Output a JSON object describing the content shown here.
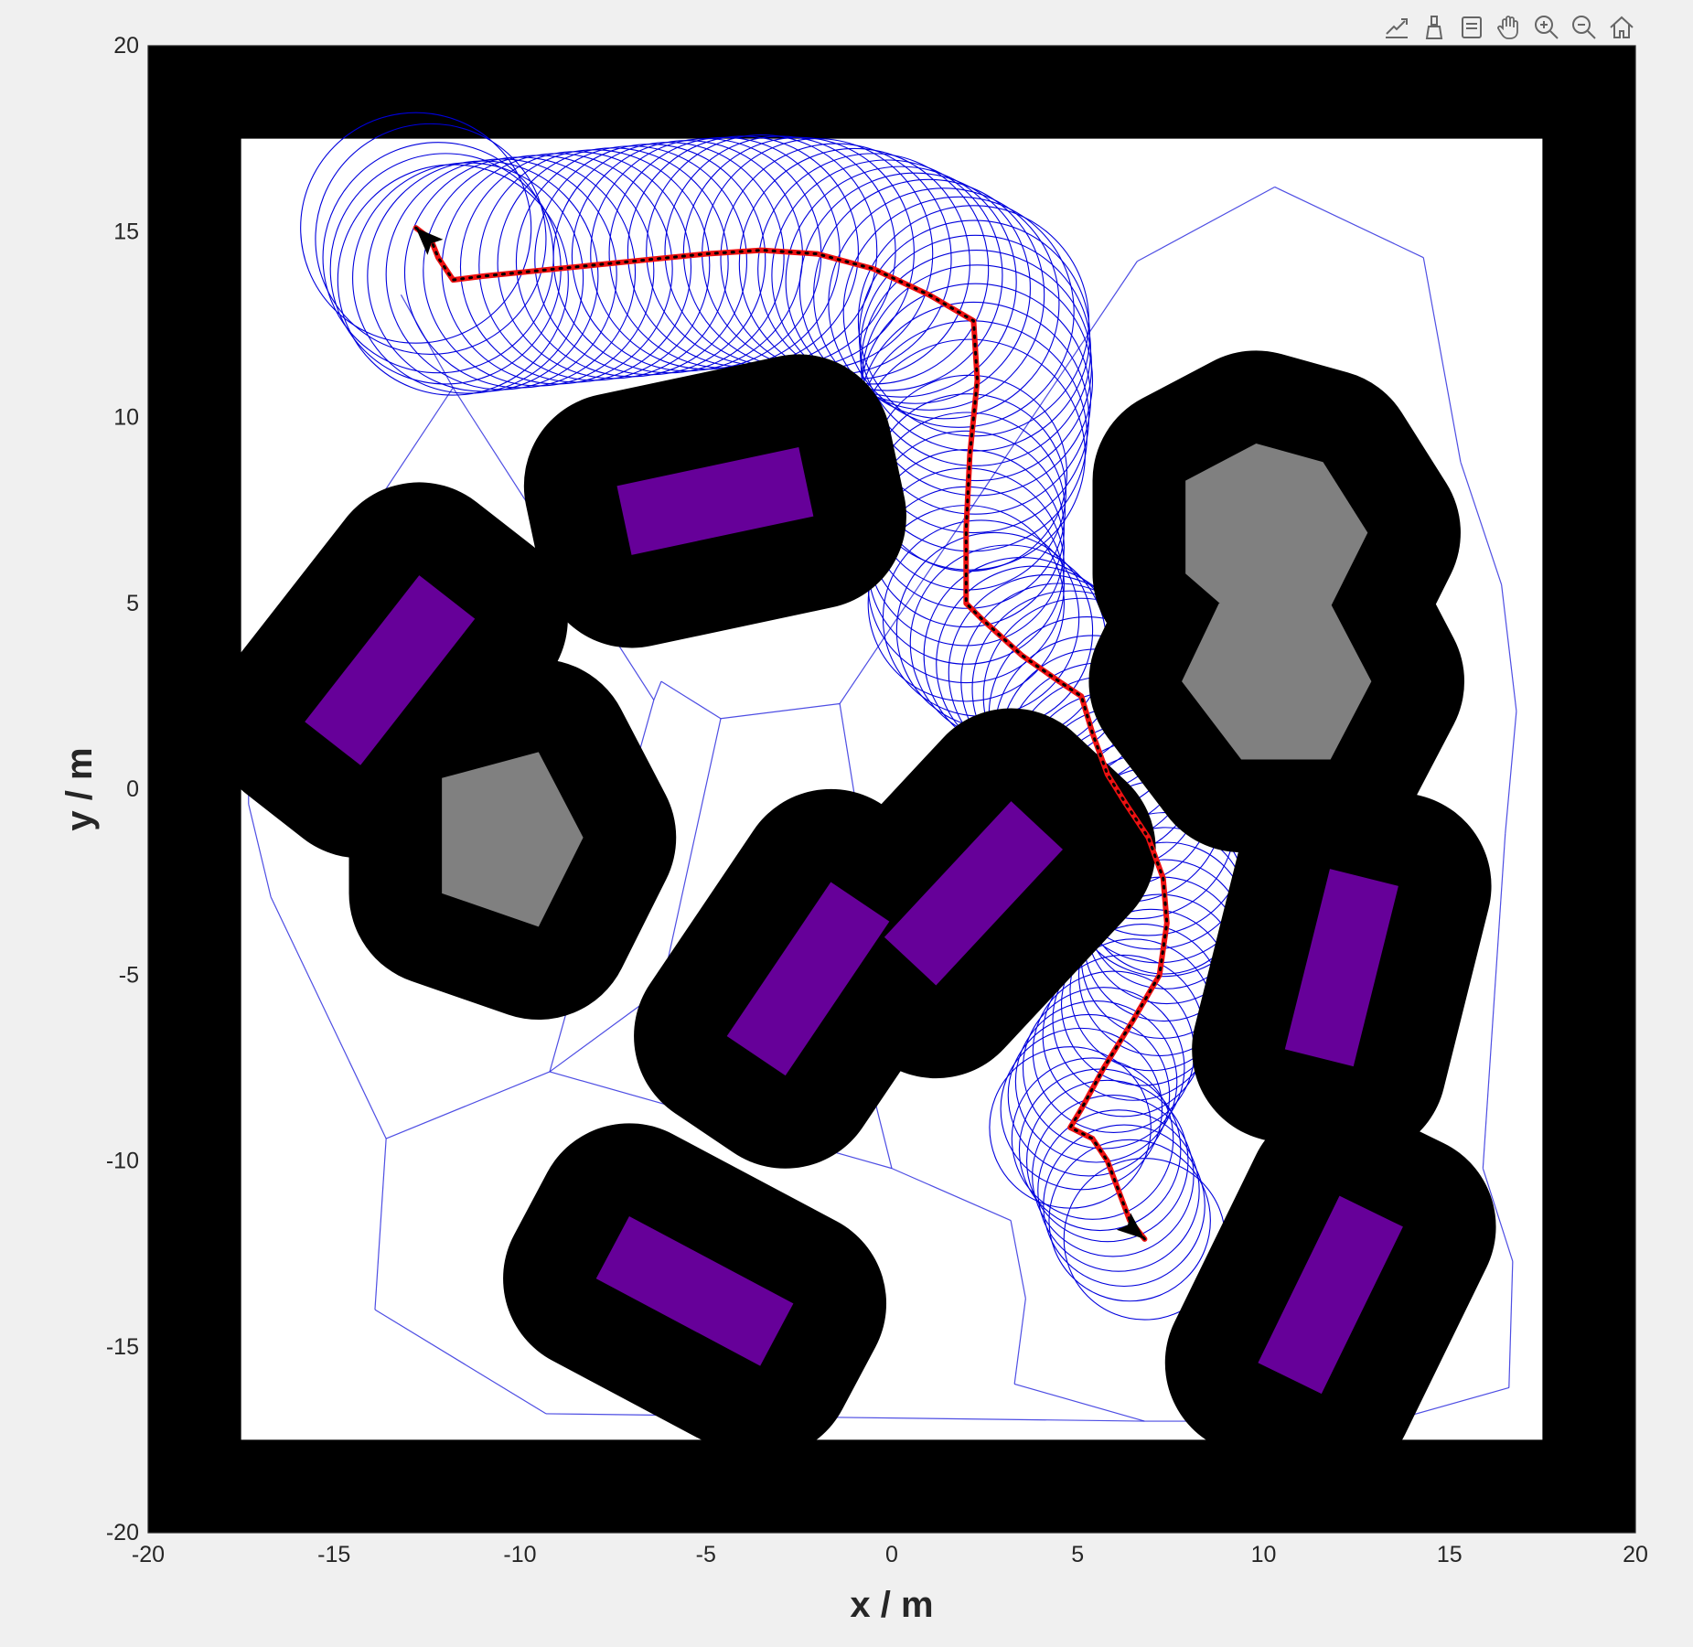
{
  "toolbar": {
    "buttons": [
      "export-icon",
      "brush-icon",
      "datatip-icon",
      "pan-icon",
      "zoom-in-icon",
      "zoom-out-icon",
      "home-icon"
    ]
  },
  "chart_data": {
    "type": "scatter",
    "title": "",
    "xlabel": "x / m",
    "ylabel": "y / m",
    "xlim": [
      -20,
      20
    ],
    "ylim": [
      -20,
      20
    ],
    "xticks": [
      -20,
      -15,
      -10,
      -5,
      0,
      5,
      10,
      15,
      20
    ],
    "yticks": [
      -20,
      -15,
      -10,
      -5,
      0,
      5,
      10,
      15,
      20
    ],
    "grid": false,
    "legend": "none",
    "colors": {
      "wall": "#000000",
      "free_space": "#ffffff",
      "inflated_obstacle": "#000000",
      "rectangle_obstacle": "#660099",
      "polygon_obstacle": "#808080",
      "roadmap": "#2222dd",
      "swept_circles": "#0000dd",
      "path": "#ee1111",
      "path_dots": "#000000",
      "arrow": "#000000"
    },
    "boundary": {
      "outer": [
        -20,
        20,
        -20,
        20
      ],
      "inner": [
        -17.5,
        17.5,
        -17.5,
        17.5
      ]
    },
    "inflation_radius": 2.5,
    "rectangles": [
      {
        "center": [
          -4.75,
          7.75
        ],
        "width": 5.0,
        "height": 1.9,
        "angle_deg": 12
      },
      {
        "center": [
          -13.5,
          3.2
        ],
        "width": 5.0,
        "height": 1.9,
        "angle_deg": 52
      },
      {
        "center": [
          -2.25,
          -5.1
        ],
        "width": 5.0,
        "height": 1.9,
        "angle_deg": 56
      },
      {
        "center": [
          2.2,
          -2.8
        ],
        "width": 5.0,
        "height": 1.9,
        "angle_deg": 47
      },
      {
        "center": [
          12.1,
          -4.8
        ],
        "width": 5.0,
        "height": 1.9,
        "angle_deg": 76
      },
      {
        "center": [
          -5.3,
          -13.5
        ],
        "width": 5.0,
        "height": 1.9,
        "angle_deg": -28
      },
      {
        "center": [
          11.8,
          -13.6
        ],
        "width": 5.0,
        "height": 1.9,
        "angle_deg": 64
      }
    ],
    "polygons": [
      {
        "vertices": [
          [
            9.8,
            9.3
          ],
          [
            11.6,
            8.8
          ],
          [
            12.8,
            6.9
          ],
          [
            11.8,
            4.9
          ],
          [
            9.4,
            4.5
          ],
          [
            7.9,
            5.8
          ],
          [
            7.9,
            8.3
          ]
        ]
      },
      {
        "vertices": [
          [
            -12.1,
            0.3
          ],
          [
            -9.5,
            1.0
          ],
          [
            -8.3,
            -1.3
          ],
          [
            -9.5,
            -3.7
          ],
          [
            -12.1,
            -2.8
          ]
        ]
      },
      {
        "vertices": [
          [
            9.4,
            0.8
          ],
          [
            7.8,
            2.9
          ],
          [
            8.8,
            5.0
          ],
          [
            11.8,
            5.0
          ],
          [
            12.9,
            2.9
          ],
          [
            11.8,
            0.8
          ]
        ]
      }
    ],
    "roadmap_nodes": [
      [
        -13.2,
        13.3
      ],
      [
        -11.8,
        10.8
      ],
      [
        -6.4,
        2.4
      ],
      [
        -17.3,
        2.5
      ],
      [
        -17.3,
        -0.4
      ],
      [
        -16.7,
        -2.9
      ],
      [
        -6.2,
        -5.4
      ],
      [
        -9.2,
        -7.6
      ],
      [
        -13.6,
        -9.4
      ],
      [
        -6.2,
        2.9
      ],
      [
        -4.6,
        1.9
      ],
      [
        -1.4,
        2.3
      ],
      [
        -0.9,
        -0.8
      ],
      [
        -1.0,
        -4.6
      ],
      [
        -0.6,
        -7.8
      ],
      [
        0.0,
        -10.2
      ],
      [
        3.2,
        -11.6
      ],
      [
        3.6,
        -13.7
      ],
      [
        -13.9,
        -14.0
      ],
      [
        -9.3,
        -16.8
      ],
      [
        3.3,
        -16.0
      ],
      [
        6.8,
        -17.0
      ],
      [
        10.3,
        16.2
      ],
      [
        14.3,
        14.3
      ],
      [
        15.3,
        8.8
      ],
      [
        16.4,
        5.5
      ],
      [
        16.8,
        2.1
      ],
      [
        16.5,
        -1.2
      ],
      [
        15.9,
        -10.2
      ],
      [
        16.7,
        -12.7
      ],
      [
        16.6,
        -16.1
      ],
      [
        13.4,
        -17.0
      ],
      [
        -12.2,
        13.0
      ],
      [
        6.6,
        14.2
      ]
    ],
    "roadmap_edges": [
      [
        0,
        1
      ],
      [
        1,
        2
      ],
      [
        1,
        3
      ],
      [
        3,
        4
      ],
      [
        4,
        5
      ],
      [
        5,
        8
      ],
      [
        8,
        7
      ],
      [
        7,
        6
      ],
      [
        6,
        10
      ],
      [
        10,
        9
      ],
      [
        9,
        2
      ],
      [
        10,
        11
      ],
      [
        11,
        12
      ],
      [
        12,
        13
      ],
      [
        13,
        14
      ],
      [
        14,
        15
      ],
      [
        15,
        16
      ],
      [
        16,
        17
      ],
      [
        17,
        20
      ],
      [
        20,
        21
      ],
      [
        8,
        18
      ],
      [
        18,
        19
      ],
      [
        19,
        21
      ],
      [
        22,
        23
      ],
      [
        23,
        24
      ],
      [
        24,
        25
      ],
      [
        25,
        26
      ],
      [
        26,
        27
      ],
      [
        27,
        28
      ],
      [
        28,
        29
      ],
      [
        29,
        30
      ],
      [
        30,
        31
      ],
      [
        31,
        21
      ],
      [
        22,
        33
      ],
      [
        33,
        11
      ],
      [
        7,
        2
      ],
      [
        15,
        7
      ]
    ],
    "path": [
      [
        -12.8,
        15.1
      ],
      [
        -12.4,
        14.8
      ],
      [
        -12.2,
        14.3
      ],
      [
        -11.8,
        13.7
      ],
      [
        -11.0,
        13.8
      ],
      [
        -9.0,
        14.0
      ],
      [
        -7.0,
        14.2
      ],
      [
        -5.0,
        14.4
      ],
      [
        -3.5,
        14.5
      ],
      [
        -2.0,
        14.4
      ],
      [
        -0.5,
        14.0
      ],
      [
        1.0,
        13.3
      ],
      [
        2.2,
        12.6
      ],
      [
        2.3,
        11.0
      ],
      [
        2.1,
        9.0
      ],
      [
        2.0,
        7.0
      ],
      [
        2.0,
        5.0
      ],
      [
        2.4,
        4.6
      ],
      [
        3.5,
        3.6
      ],
      [
        4.5,
        2.9
      ],
      [
        5.1,
        2.5
      ],
      [
        5.4,
        1.5
      ],
      [
        5.8,
        0.4
      ],
      [
        6.3,
        -0.4
      ],
      [
        6.9,
        -1.3
      ],
      [
        7.3,
        -2.4
      ],
      [
        7.4,
        -3.6
      ],
      [
        7.2,
        -5.0
      ],
      [
        6.5,
        -6.2
      ],
      [
        5.7,
        -7.5
      ],
      [
        5.1,
        -8.6
      ],
      [
        4.8,
        -9.1
      ],
      [
        5.4,
        -9.4
      ],
      [
        5.8,
        -10.0
      ],
      [
        6.1,
        -10.8
      ],
      [
        6.4,
        -11.6
      ],
      [
        6.8,
        -12.1
      ]
    ],
    "sweep_radius": 3.1,
    "start": {
      "position": [
        -12.8,
        15.1
      ],
      "heading_deg": 135
    },
    "goal": {
      "position": [
        6.8,
        -12.1
      ],
      "heading_deg": -40
    }
  }
}
